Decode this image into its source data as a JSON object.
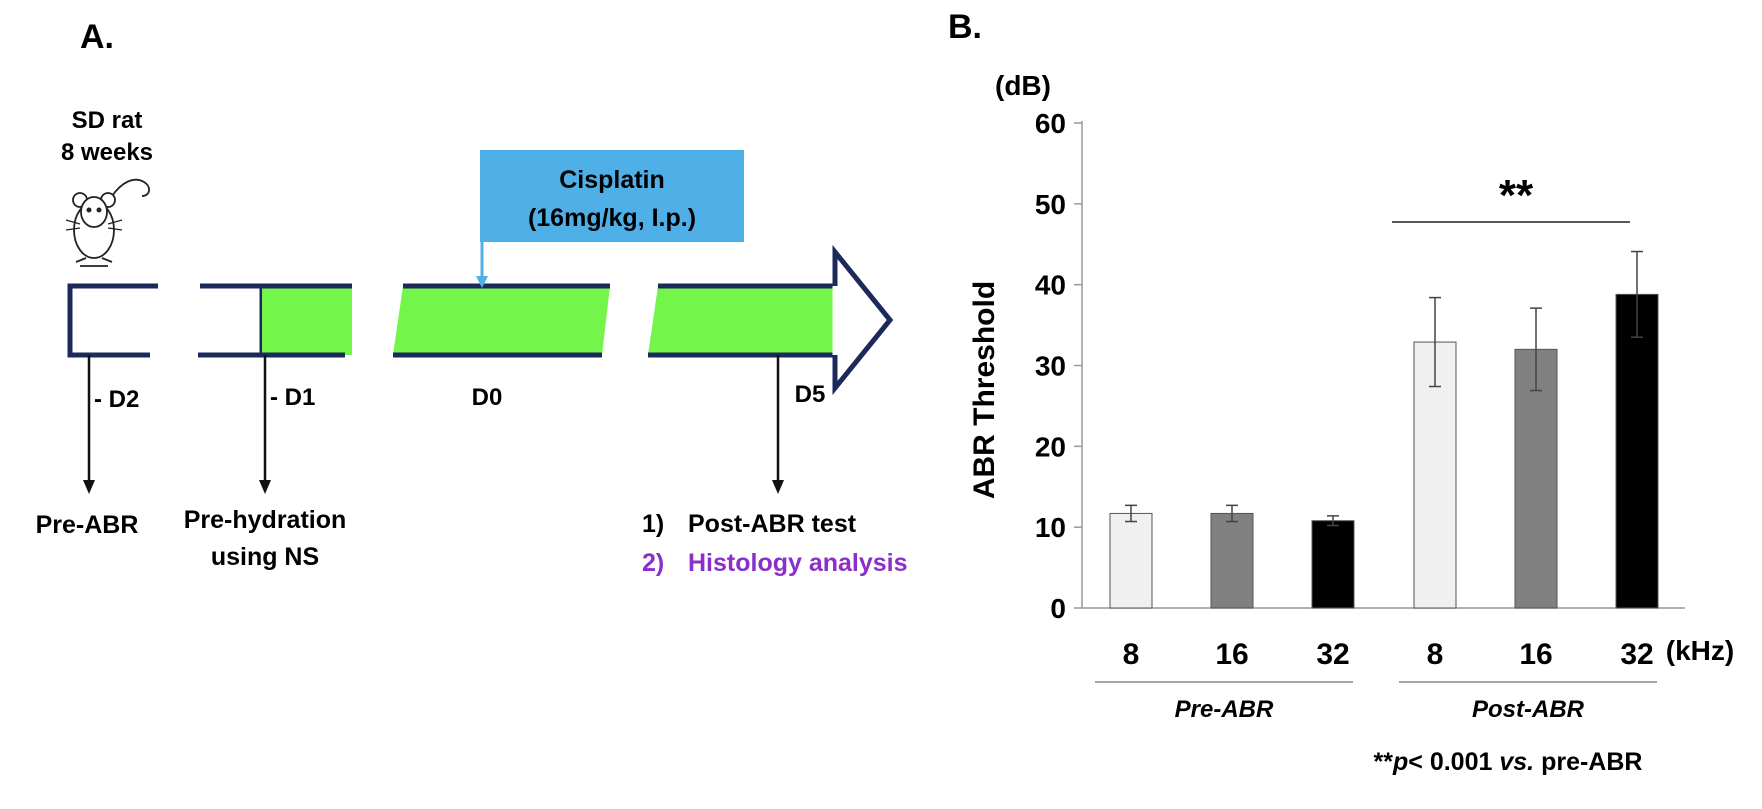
{
  "panel_a": {
    "label": "A.",
    "subject_line1": "SD rat",
    "subject_line2": "8 weeks",
    "icon": "rat-icon",
    "drug_line1": "Cisplatin",
    "drug_line2": "(16mg/kg, I.p.)",
    "days": [
      "- D2",
      "- D1",
      "D0",
      "D5"
    ],
    "pre_abr": "Pre-ABR",
    "prehydration_line1": "Pre-hydration",
    "prehydration_line2": "using NS",
    "outcome1_num": "1)",
    "outcome1_text": "Post-ABR test",
    "outcome2_num": "2)",
    "outcome2_text": "Histology analysis",
    "colors": {
      "bar_fill": "#74f54a",
      "bar_outline": "#1b2a5a",
      "drug_box": "#4fb0e8",
      "purple": "#8a2fc9"
    }
  },
  "chart_data": {
    "panel_label": "B.",
    "type": "bar",
    "yunit": "(dB)",
    "ylabel": "ABR Threshold",
    "xunit": "(kHz)",
    "ylim": [
      0,
      60
    ],
    "yticks": [
      "0",
      "10",
      "20",
      "30",
      "40",
      "50",
      "60"
    ],
    "categories": [
      "8",
      "16",
      "32",
      "8",
      "16",
      "32"
    ],
    "groups": [
      {
        "name": "Pre-ABR",
        "indices": [
          0,
          1,
          2
        ]
      },
      {
        "name": "Post-ABR",
        "indices": [
          3,
          4,
          5
        ]
      }
    ],
    "values": [
      11.7,
      11.7,
      10.8,
      32.9,
      32.0,
      38.8
    ],
    "errors": [
      1.0,
      1.0,
      0.6,
      5.5,
      5.1,
      5.3
    ],
    "bar_colors": [
      "#f0f0f0",
      "#808080",
      "#000000",
      "#f0f0f0",
      "#808080",
      "#000000"
    ],
    "significance": {
      "label": "**",
      "from": 3,
      "to": 5
    },
    "footnote_stars": "**",
    "footnote_p": "p",
    "footnote_rest": "< 0.001",
    "footnote_vs": "vs.",
    "footnote_end": "pre-ABR"
  }
}
